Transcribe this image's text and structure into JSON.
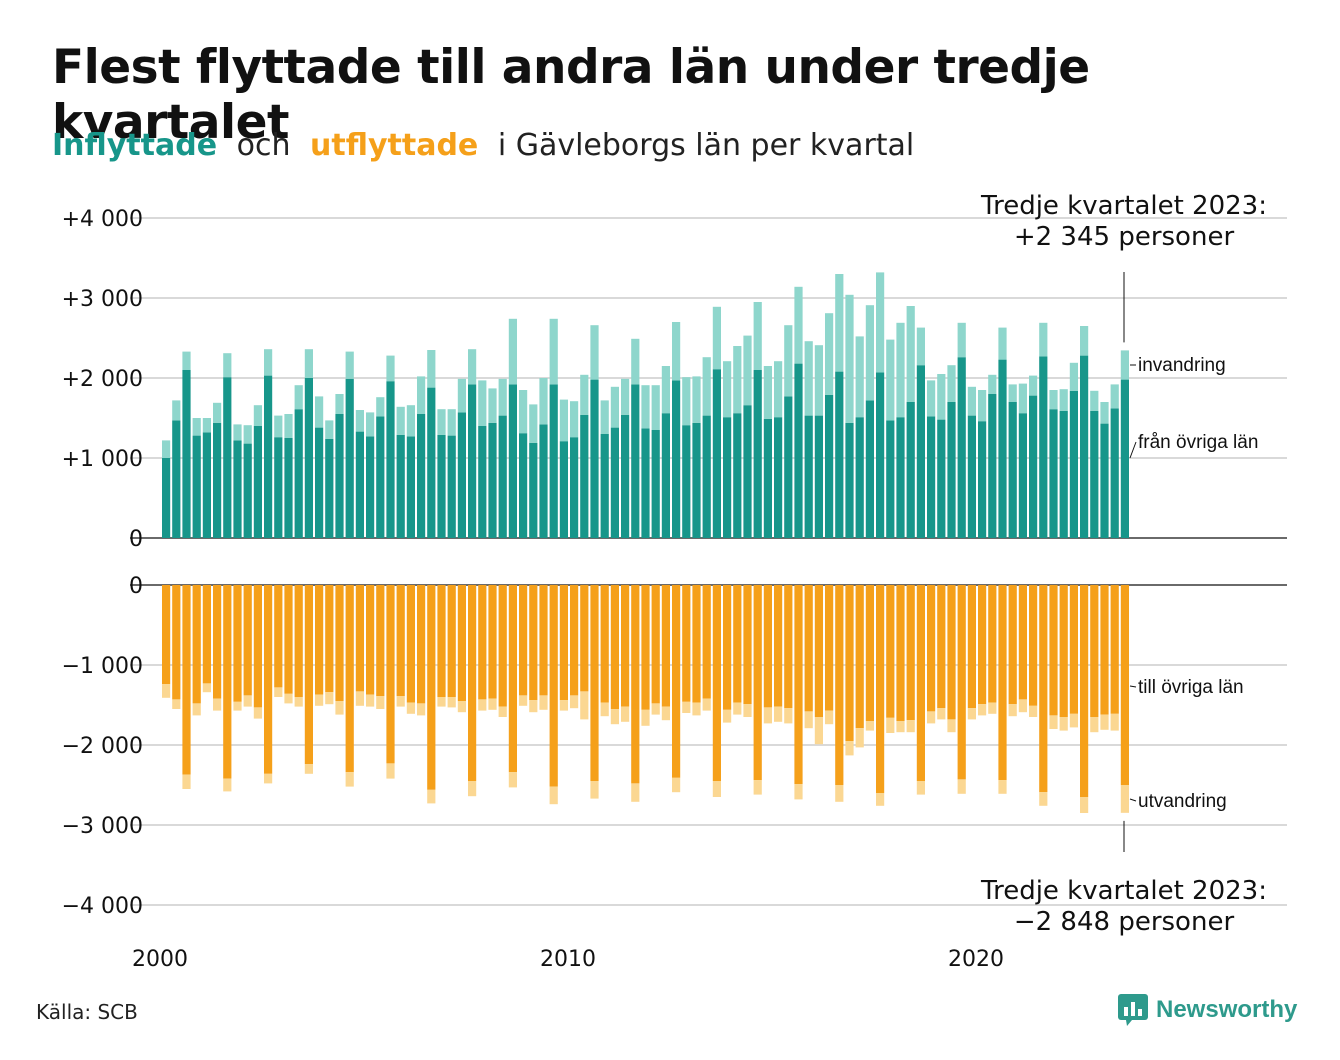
{
  "title": "Flest flyttade till andra län under tredje kvartalet",
  "subtitle": {
    "in_word": "Inflyttade",
    "and_word": "och",
    "out_word": "utflyttade",
    "rest": "i Gävleborgs län per kvartal"
  },
  "source": "Källa: SCB",
  "logo": {
    "name": "Newsworthy",
    "icon": "bar-chart-speech-icon"
  },
  "colors": {
    "inflow_other_counties": "#17968a",
    "immigration": "#8ed6cc",
    "outflow_other_counties": "#f5a01a",
    "emigration": "#fbd792",
    "grid": "#d9d9d9",
    "axis": "#111111"
  },
  "chart_data": [
    {
      "type": "bar",
      "stacked": true,
      "title": "Inflyttade",
      "xlabel": "",
      "ylabel": "",
      "x_ticks": [
        "2000",
        "2010",
        "2020"
      ],
      "x_range": [
        "2000 Q1",
        "2023 Q3"
      ],
      "ylim": [
        0,
        4000
      ],
      "y_ticks": [
        "0",
        "+1 000",
        "+2 000",
        "+3 000",
        "+4 000"
      ],
      "grid": true,
      "series": [
        {
          "name": "från övriga län",
          "values": [
            1000,
            1470,
            2100,
            1280,
            1320,
            1440,
            2010,
            1220,
            1180,
            1400,
            2030,
            1260,
            1250,
            1610,
            2000,
            1380,
            1240,
            1550,
            1990,
            1330,
            1270,
            1520,
            1960,
            1290,
            1270,
            1550,
            1880,
            1290,
            1280,
            1570,
            1920,
            1400,
            1440,
            1530,
            1920,
            1310,
            1190,
            1420,
            1920,
            1210,
            1260,
            1540,
            1980,
            1300,
            1380,
            1540,
            1920,
            1370,
            1350,
            1560,
            1970,
            1410,
            1440,
            1530,
            2110,
            1510,
            1560,
            1660,
            2100,
            1490,
            1510,
            1770,
            2180,
            1530,
            1530,
            1790,
            2080,
            1440,
            1510,
            1720,
            2070,
            1470,
            1510,
            1700,
            2160,
            1520,
            1480,
            1700,
            2260,
            1530,
            1460,
            1800,
            2230,
            1700,
            1560,
            1780,
            2270,
            1610,
            1590,
            1840,
            2280,
            1590,
            1430,
            1620,
            1980
          ]
        },
        {
          "name": "invandring",
          "values": [
            220,
            250,
            230,
            220,
            180,
            250,
            300,
            200,
            230,
            260,
            330,
            270,
            300,
            300,
            360,
            390,
            230,
            250,
            340,
            270,
            300,
            240,
            320,
            350,
            390,
            470,
            470,
            320,
            330,
            420,
            440,
            570,
            430,
            460,
            820,
            540,
            480,
            580,
            820,
            520,
            450,
            500,
            680,
            420,
            510,
            450,
            570,
            540,
            560,
            590,
            730,
            600,
            580,
            730,
            780,
            700,
            840,
            870,
            850,
            660,
            700,
            890,
            960,
            930,
            880,
            1020,
            1220,
            1600,
            1010,
            1190,
            1250,
            1010,
            1180,
            1200,
            470,
            450,
            570,
            460,
            430,
            360,
            390,
            240,
            400,
            220,
            370,
            250,
            420,
            240,
            270,
            350,
            370,
            250,
            270,
            300,
            365
          ]
        },
        {
          "name": "Tredje kvartalet 2023:",
          "values": [
            2345
          ]
        }
      ],
      "annotation": {
        "header": "Tredje kvartalet 2023:",
        "text": "+2 345 personer"
      }
    },
    {
      "type": "bar",
      "stacked": true,
      "title": "utflyttade",
      "xlabel": "",
      "ylabel": "",
      "ylim": [
        -4000,
        0
      ],
      "y_ticks": [
        "0",
        "−1 000",
        "−2 000",
        "−3 000",
        "−4 000"
      ],
      "grid": true,
      "series": [
        {
          "name": "till övriga län",
          "values": [
            -1240,
            -1430,
            -2370,
            -1480,
            -1230,
            -1420,
            -2420,
            -1460,
            -1380,
            -1530,
            -2360,
            -1280,
            -1360,
            -1400,
            -2240,
            -1370,
            -1340,
            -1450,
            -2340,
            -1330,
            -1370,
            -1390,
            -2230,
            -1390,
            -1470,
            -1480,
            -2560,
            -1400,
            -1400,
            -1450,
            -2450,
            -1430,
            -1420,
            -1520,
            -2340,
            -1380,
            -1440,
            -1380,
            -2520,
            -1440,
            -1380,
            -1330,
            -2450,
            -1470,
            -1550,
            -1520,
            -2480,
            -1560,
            -1480,
            -1520,
            -2410,
            -1460,
            -1470,
            -1420,
            -2450,
            -1560,
            -1470,
            -1490,
            -2440,
            -1530,
            -1520,
            -1540,
            -2490,
            -1580,
            -1650,
            -1570,
            -2500,
            -1950,
            -1790,
            -1700,
            -2600,
            -1660,
            -1700,
            -1690,
            -2450,
            -1580,
            -1540,
            -1680,
            -2430,
            -1540,
            -1490,
            -1470,
            -2440,
            -1490,
            -1430,
            -1510,
            -2590,
            -1630,
            -1650,
            -1610,
            -2650,
            -1650,
            -1620,
            -1610,
            -2500
          ]
        },
        {
          "name": "utvandring",
          "values": [
            -170,
            -120,
            -180,
            -150,
            -110,
            -150,
            -160,
            -110,
            -140,
            -140,
            -120,
            -120,
            -120,
            -120,
            -120,
            -140,
            -150,
            -170,
            -180,
            -180,
            -150,
            -160,
            -190,
            -130,
            -140,
            -150,
            -170,
            -120,
            -130,
            -140,
            -190,
            -140,
            -140,
            -130,
            -190,
            -130,
            -150,
            -180,
            -220,
            -130,
            -160,
            -350,
            -220,
            -170,
            -190,
            -190,
            -230,
            -200,
            -140,
            -170,
            -180,
            -140,
            -160,
            -150,
            -200,
            -160,
            -150,
            -160,
            -180,
            -200,
            -190,
            -190,
            -190,
            -210,
            -340,
            -170,
            -210,
            -180,
            -240,
            -120,
            -160,
            -190,
            -140,
            -150,
            -170,
            -150,
            -140,
            -160,
            -180,
            -140,
            -140,
            -140,
            -170,
            -150,
            -160,
            -140,
            -170,
            -170,
            -170,
            -170,
            -200,
            -190,
            -190,
            -210,
            -348
          ]
        }
      ],
      "annotation": {
        "header": "Tredje kvartalet 2023:",
        "text": "−2 848 personer"
      }
    }
  ]
}
